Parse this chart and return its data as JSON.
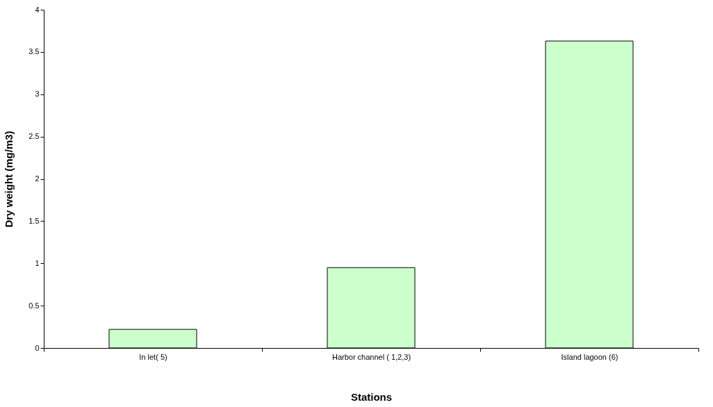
{
  "chart_data": {
    "type": "bar",
    "xlabel": "Stations",
    "ylabel": "Dry weight (mg/m3)",
    "categories": [
      "In let( 5)",
      "Harbor channel ( 1,2,3)",
      "Island lagoon (6)"
    ],
    "values": [
      0.22,
      0.95,
      3.63
    ],
    "color": "#ccffcc",
    "ylim": [
      0,
      4
    ],
    "yticks": [
      0,
      0.5,
      1,
      1.5,
      2,
      2.5,
      3,
      3.5,
      4
    ],
    "grid": false
  }
}
